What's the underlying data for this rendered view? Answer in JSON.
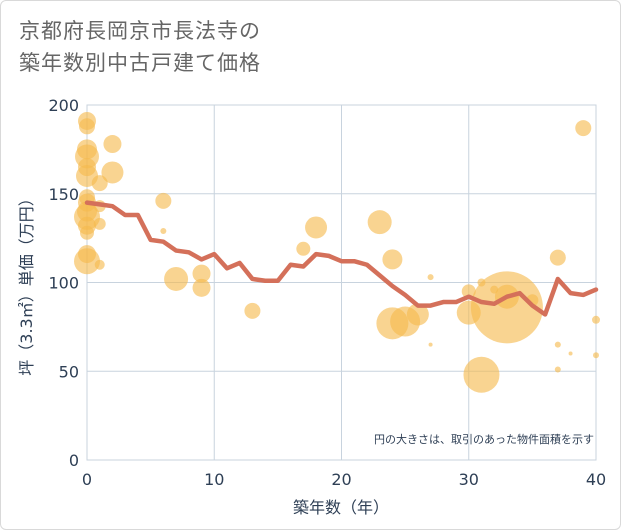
{
  "title_lines": [
    "京都府長岡京市長法寺の",
    "築年数別中古戸建て価格"
  ],
  "chart_data": {
    "type": "scatter",
    "title": "京都府長岡京市長法寺の築年数別中古戸建て価格",
    "xlabel": "築年数（年）",
    "ylabel": "坪（3.3㎡）単価（万円）",
    "xlim": [
      0,
      40
    ],
    "ylim": [
      0,
      200
    ],
    "x_ticks": [
      "0",
      "10",
      "20",
      "30",
      "40"
    ],
    "y_ticks": [
      "0",
      "50",
      "100",
      "150",
      "200"
    ],
    "grid": true,
    "annotation": "円の大きさは、取引のあった物件面積を示す",
    "colors": {
      "bubble": "#f5b94e",
      "line": "#d4705a"
    },
    "line_series": {
      "x": [
        0,
        1,
        2,
        3,
        4,
        5,
        6,
        7,
        8,
        9,
        10,
        11,
        12,
        13,
        14,
        15,
        16,
        17,
        18,
        19,
        20,
        21,
        22,
        23,
        24,
        25,
        26,
        27,
        28,
        29,
        30,
        31,
        32,
        33,
        34,
        35,
        36,
        37,
        38,
        39,
        40
      ],
      "y": [
        145,
        144,
        143,
        138,
        138,
        124,
        123,
        118,
        117,
        113,
        116,
        108,
        111,
        102,
        101,
        101,
        110,
        109,
        116,
        115,
        112,
        112,
        110,
        104,
        98,
        93,
        87,
        87,
        89,
        89,
        92,
        89,
        88,
        92,
        94,
        87,
        82,
        102,
        94,
        93,
        96
      ]
    },
    "bubbles": [
      {
        "x": 0,
        "y": 191,
        "s": 9
      },
      {
        "x": 0,
        "y": 188,
        "s": 8
      },
      {
        "x": 0,
        "y": 175,
        "s": 10
      },
      {
        "x": 0,
        "y": 171,
        "s": 12
      },
      {
        "x": 0,
        "y": 165,
        "s": 9
      },
      {
        "x": 0,
        "y": 160,
        "s": 11
      },
      {
        "x": 0,
        "y": 148,
        "s": 8
      },
      {
        "x": 0,
        "y": 145,
        "s": 9
      },
      {
        "x": 0,
        "y": 140,
        "s": 10
      },
      {
        "x": 0,
        "y": 137,
        "s": 13
      },
      {
        "x": 0,
        "y": 132,
        "s": 9
      },
      {
        "x": 0,
        "y": 128,
        "s": 7
      },
      {
        "x": 0,
        "y": 116,
        "s": 9
      },
      {
        "x": 0,
        "y": 112,
        "s": 13
      },
      {
        "x": 1,
        "y": 156,
        "s": 8
      },
      {
        "x": 1,
        "y": 143,
        "s": 6
      },
      {
        "x": 1,
        "y": 133,
        "s": 6
      },
      {
        "x": 1,
        "y": 110,
        "s": 5
      },
      {
        "x": 2,
        "y": 178,
        "s": 9
      },
      {
        "x": 2,
        "y": 162,
        "s": 11
      },
      {
        "x": 6,
        "y": 146,
        "s": 8
      },
      {
        "x": 6,
        "y": 129,
        "s": 3
      },
      {
        "x": 7,
        "y": 102,
        "s": 12
      },
      {
        "x": 9,
        "y": 105,
        "s": 9
      },
      {
        "x": 9,
        "y": 97,
        "s": 9
      },
      {
        "x": 13,
        "y": 84,
        "s": 8
      },
      {
        "x": 17,
        "y": 119,
        "s": 7
      },
      {
        "x": 18,
        "y": 131,
        "s": 11
      },
      {
        "x": 23,
        "y": 134,
        "s": 12
      },
      {
        "x": 24,
        "y": 113,
        "s": 10
      },
      {
        "x": 24,
        "y": 77,
        "s": 16
      },
      {
        "x": 25,
        "y": 78,
        "s": 15
      },
      {
        "x": 26,
        "y": 82,
        "s": 11
      },
      {
        "x": 27,
        "y": 103,
        "s": 3
      },
      {
        "x": 27,
        "y": 65,
        "s": 2
      },
      {
        "x": 30,
        "y": 95,
        "s": 7
      },
      {
        "x": 30,
        "y": 83,
        "s": 12
      },
      {
        "x": 31,
        "y": 48,
        "s": 18
      },
      {
        "x": 31,
        "y": 100,
        "s": 4
      },
      {
        "x": 32,
        "y": 96,
        "s": 4
      },
      {
        "x": 33,
        "y": 86,
        "s": 36
      },
      {
        "x": 33,
        "y": 92,
        "s": 12
      },
      {
        "x": 35,
        "y": 90,
        "s": 6
      },
      {
        "x": 37,
        "y": 114,
        "s": 8
      },
      {
        "x": 37,
        "y": 65,
        "s": 3
      },
      {
        "x": 37,
        "y": 51,
        "s": 3
      },
      {
        "x": 38,
        "y": 60,
        "s": 2
      },
      {
        "x": 39,
        "y": 187,
        "s": 8
      },
      {
        "x": 40,
        "y": 79,
        "s": 4
      },
      {
        "x": 40,
        "y": 59,
        "s": 3
      }
    ]
  }
}
